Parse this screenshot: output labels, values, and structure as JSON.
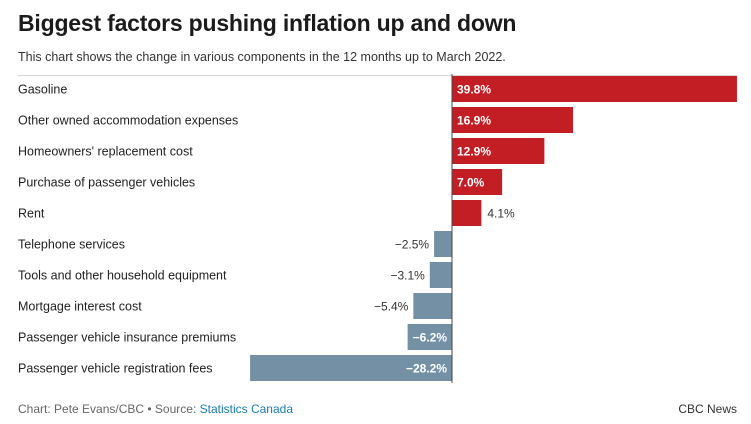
{
  "header": {
    "title": "Biggest factors pushing inflation up and down",
    "subtitle": "This chart shows the change in various components in the 12 months up to March 2022."
  },
  "footer": {
    "credit_prefix": "Chart: Pete Evans/CBC • Source: ",
    "source_link": "Statistics Canada",
    "brand": "CBC News"
  },
  "colors": {
    "positive": "#c41e25",
    "negative": "#7390a5"
  },
  "chart_data": {
    "type": "bar",
    "orientation": "horizontal",
    "title": "Biggest factors pushing inflation up and down",
    "subtitle": "This chart shows the change in various components in the 12 months up to March 2022.",
    "unit": "%",
    "xlim": [
      -28.2,
      39.8
    ],
    "grid": false,
    "categories": [
      "Gasoline",
      "Other owned accommodation expenses",
      "Homeowners' replacement cost",
      "Purchase of passenger vehicles",
      "Rent",
      "Telephone services",
      "Tools and other household equipment",
      "Mortgage interest cost",
      "Passenger vehicle insurance premiums",
      "Passenger vehicle registration fees"
    ],
    "values": [
      39.8,
      16.9,
      12.9,
      7.0,
      4.1,
      -2.5,
      -3.1,
      -5.4,
      -6.2,
      -28.2
    ],
    "value_labels": [
      "39.8%",
      "16.9%",
      "12.9%",
      "7.0%",
      "4.1%",
      "−2.5%",
      "−3.1%",
      "−5.4%",
      "−6.2%",
      "−28.2%"
    ]
  }
}
